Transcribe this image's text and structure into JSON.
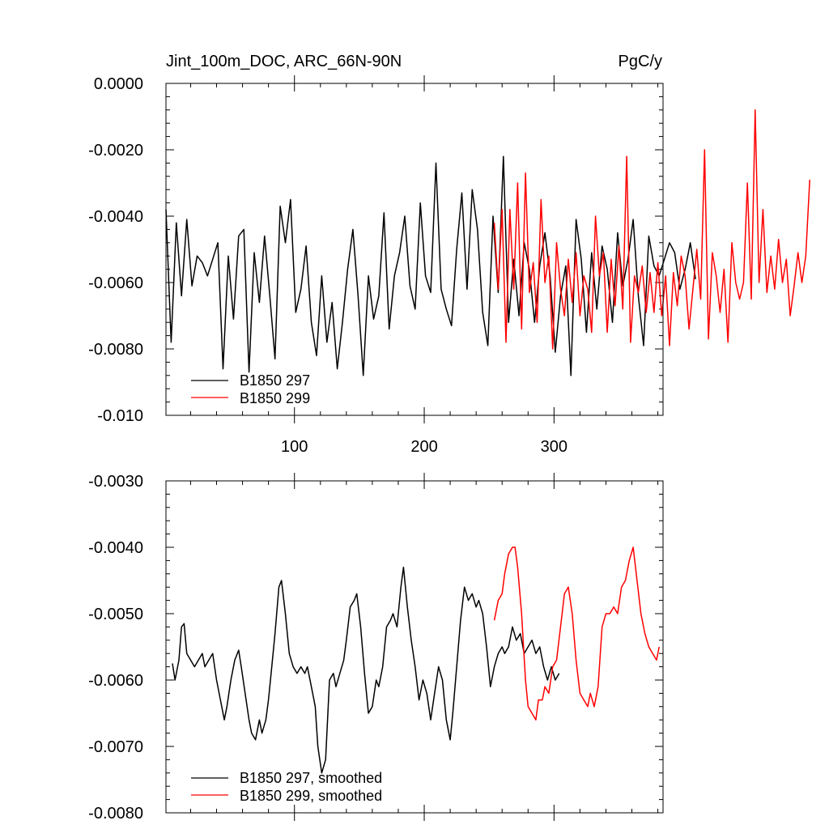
{
  "colors": {
    "series_297": "#000000",
    "series_299": "#ff0000",
    "axis": "#000000"
  },
  "chart_data": [
    {
      "type": "line",
      "title": "Jint_100m_DOC, ARC_66N-90N",
      "units": "PgC/y",
      "xlim": [
        1,
        384
      ],
      "ylim": [
        -0.01,
        0.0
      ],
      "x_ticks": [
        100,
        200,
        300
      ],
      "x_tick_labels": [
        "100",
        "200",
        "300"
      ],
      "y_ticks": [
        0.0,
        -0.002,
        -0.004,
        -0.006,
        -0.008,
        -0.01
      ],
      "y_tick_labels": [
        "0.0000",
        "-0.0020",
        "-0.0040",
        "-0.0060",
        "-0.0080",
        "-0.010"
      ],
      "legend_position": "bottom-left",
      "series": [
        {
          "name": "B1850 297",
          "color": "#000000",
          "x_start": 1,
          "x_step": 4,
          "values": [
            -0.0038,
            -0.0078,
            -0.0042,
            -0.0064,
            -0.0041,
            -0.0061,
            -0.0052,
            -0.0054,
            -0.0058,
            -0.0053,
            -0.0048,
            -0.0086,
            -0.0052,
            -0.0071,
            -0.0046,
            -0.0044,
            -0.0087,
            -0.0051,
            -0.0066,
            -0.0046,
            -0.0064,
            -0.0083,
            -0.0037,
            -0.0048,
            -0.0035,
            -0.0069,
            -0.0062,
            -0.0049,
            -0.0072,
            -0.0082,
            -0.0058,
            -0.0078,
            -0.0066,
            -0.0086,
            -0.0072,
            -0.0056,
            -0.0044,
            -0.0064,
            -0.0088,
            -0.0058,
            -0.0071,
            -0.0064,
            -0.0039,
            -0.0074,
            -0.0058,
            -0.0051,
            -0.004,
            -0.0061,
            -0.0068,
            -0.0036,
            -0.0058,
            -0.0063,
            -0.0024,
            -0.0062,
            -0.0068,
            -0.0073,
            -0.005,
            -0.0033,
            -0.0062,
            -0.0032,
            -0.0044,
            -0.0069,
            -0.0079,
            -0.004,
            -0.0063,
            -0.0022,
            -0.0072,
            -0.0053,
            -0.007,
            -0.0048,
            -0.0056,
            -0.0072,
            -0.0055,
            -0.0045,
            -0.0058,
            -0.0081,
            -0.0064,
            -0.0055,
            -0.0088,
            -0.0041,
            -0.0053,
            -0.0075,
            -0.0051,
            -0.0068,
            -0.0049,
            -0.0056,
            -0.0072,
            -0.0045,
            -0.0061,
            -0.0053,
            -0.0041,
            -0.0064,
            -0.0079,
            -0.0046,
            -0.0055,
            -0.0058,
            -0.0053,
            -0.0048,
            -0.0051,
            -0.0062,
            -0.0056,
            -0.0048,
            -0.0059
          ]
        },
        {
          "name": "B1850 299",
          "color": "#ff0000",
          "x_start": 254,
          "x_step": 3,
          "values": [
            -0.0042,
            -0.0062,
            -0.0038,
            -0.0078,
            -0.0038,
            -0.0062,
            -0.003,
            -0.0074,
            -0.0027,
            -0.0063,
            -0.0054,
            -0.0072,
            -0.0035,
            -0.006,
            -0.0052,
            -0.008,
            -0.0048,
            -0.0062,
            -0.007,
            -0.0053,
            -0.0066,
            -0.0051,
            -0.007,
            -0.0058,
            -0.0062,
            -0.0075,
            -0.004,
            -0.0058,
            -0.0051,
            -0.0075,
            -0.0053,
            -0.0067,
            -0.0049,
            -0.0068,
            -0.0022,
            -0.0078,
            -0.0058,
            -0.0063,
            -0.0055,
            -0.0069,
            -0.0057,
            -0.0069,
            -0.0054,
            -0.007,
            -0.0058,
            -0.0079,
            -0.0057,
            -0.0067,
            -0.0052,
            -0.0058,
            -0.0074,
            -0.0062,
            -0.005,
            -0.0065,
            -0.002,
            -0.0077,
            -0.0051,
            -0.0058,
            -0.0069,
            -0.0056,
            -0.0078,
            -0.0048,
            -0.006,
            -0.0065,
            -0.006,
            -0.003,
            -0.0065,
            -0.0008,
            -0.006,
            -0.0038,
            -0.0063,
            -0.0052,
            -0.0062,
            -0.0047,
            -0.006,
            -0.0053,
            -0.007,
            -0.0061,
            -0.0051,
            -0.006,
            -0.0052,
            -0.0029
          ]
        }
      ]
    },
    {
      "type": "line",
      "xlim": [
        1,
        384
      ],
      "ylim": [
        -0.008,
        -0.003
      ],
      "x_ticks": [
        100,
        200,
        300
      ],
      "x_tick_labels": [],
      "y_ticks": [
        -0.003,
        -0.004,
        -0.005,
        -0.006,
        -0.007,
        -0.008
      ],
      "y_tick_labels": [
        "-0.0030",
        "-0.0040",
        "-0.0050",
        "-0.0060",
        "-0.0070",
        "-0.0080"
      ],
      "legend_position": "bottom-left",
      "series": [
        {
          "name": "B1850 297, smoothed",
          "color": "#000000",
          "x": [
            6,
            8,
            11,
            13,
            15,
            17,
            20,
            23,
            26,
            29,
            31,
            34,
            37,
            40,
            43,
            46,
            48,
            51,
            54,
            57,
            59,
            62,
            65,
            67,
            70,
            73,
            75,
            78,
            80,
            82,
            85,
            88,
            90,
            93,
            96,
            99,
            102,
            105,
            108,
            110,
            113,
            116,
            118,
            121,
            124,
            127,
            130,
            132,
            135,
            138,
            140,
            143,
            146,
            148,
            151,
            154,
            157,
            160,
            163,
            165,
            168,
            171,
            174,
            176,
            179,
            182,
            184,
            187,
            190,
            193,
            196,
            199,
            202,
            205,
            208,
            211,
            214,
            217,
            220,
            222,
            225,
            228,
            231,
            234,
            237,
            240,
            242,
            245,
            248,
            251,
            254,
            257,
            260,
            262,
            265,
            268,
            271,
            274,
            277,
            280,
            283,
            286,
            289,
            292,
            295,
            298,
            301,
            304
          ],
          "values": [
            -0.00575,
            -0.006,
            -0.0057,
            -0.0052,
            -0.00515,
            -0.0056,
            -0.0057,
            -0.0058,
            -0.0057,
            -0.0056,
            -0.0058,
            -0.0057,
            -0.0056,
            -0.006,
            -0.0063,
            -0.0066,
            -0.0064,
            -0.006,
            -0.0057,
            -0.00555,
            -0.0058,
            -0.0062,
            -0.0066,
            -0.0068,
            -0.0069,
            -0.0066,
            -0.0068,
            -0.0066,
            -0.0063,
            -0.0059,
            -0.0053,
            -0.0046,
            -0.0045,
            -0.005,
            -0.0056,
            -0.0058,
            -0.0059,
            -0.0058,
            -0.0059,
            -0.0058,
            -0.0061,
            -0.0064,
            -0.007,
            -0.0074,
            -0.0072,
            -0.006,
            -0.0059,
            -0.0061,
            -0.0059,
            -0.0057,
            -0.0054,
            -0.0049,
            -0.0048,
            -0.0047,
            -0.0052,
            -0.0059,
            -0.0065,
            -0.0064,
            -0.006,
            -0.0061,
            -0.0058,
            -0.0052,
            -0.0051,
            -0.005,
            -0.0052,
            -0.0046,
            -0.0043,
            -0.0049,
            -0.0054,
            -0.0058,
            -0.0063,
            -0.006,
            -0.0062,
            -0.0066,
            -0.0062,
            -0.0058,
            -0.006,
            -0.0066,
            -0.0069,
            -0.0065,
            -0.0058,
            -0.0051,
            -0.0046,
            -0.0048,
            -0.0047,
            -0.0049,
            -0.0048,
            -0.005,
            -0.0055,
            -0.0061,
            -0.0058,
            -0.0056,
            -0.0055,
            -0.0056,
            -0.0055,
            -0.0052,
            -0.0054,
            -0.0053,
            -0.0056,
            -0.0055,
            -0.0054,
            -0.0056,
            -0.0055,
            -0.0058,
            -0.006,
            -0.0058,
            -0.006,
            -0.0059
          ]
        },
        {
          "name": "B1850 299, smoothed",
          "color": "#ff0000",
          "x": [
            254,
            257,
            260,
            262,
            265,
            268,
            270,
            272,
            275,
            278,
            280,
            283,
            286,
            288,
            291,
            293,
            296,
            299,
            302,
            305,
            308,
            311,
            314,
            317,
            320,
            323,
            326,
            328,
            331,
            334,
            337,
            340,
            343,
            346,
            349,
            352,
            355,
            358,
            361,
            364,
            367,
            370,
            373,
            376,
            379,
            381
          ],
          "values": [
            -0.0051,
            -0.0048,
            -0.0047,
            -0.0044,
            -0.0041,
            -0.004,
            -0.004,
            -0.0043,
            -0.005,
            -0.006,
            -0.0064,
            -0.0065,
            -0.0066,
            -0.0063,
            -0.0063,
            -0.0061,
            -0.0062,
            -0.0058,
            -0.0057,
            -0.0052,
            -0.0047,
            -0.0046,
            -0.005,
            -0.0057,
            -0.0062,
            -0.0063,
            -0.0064,
            -0.0062,
            -0.0064,
            -0.0061,
            -0.0052,
            -0.005,
            -0.005,
            -0.0049,
            -0.005,
            -0.0046,
            -0.0045,
            -0.0042,
            -0.004,
            -0.0045,
            -0.005,
            -0.0053,
            -0.0055,
            -0.0056,
            -0.0057,
            -0.0055
          ]
        }
      ]
    }
  ]
}
